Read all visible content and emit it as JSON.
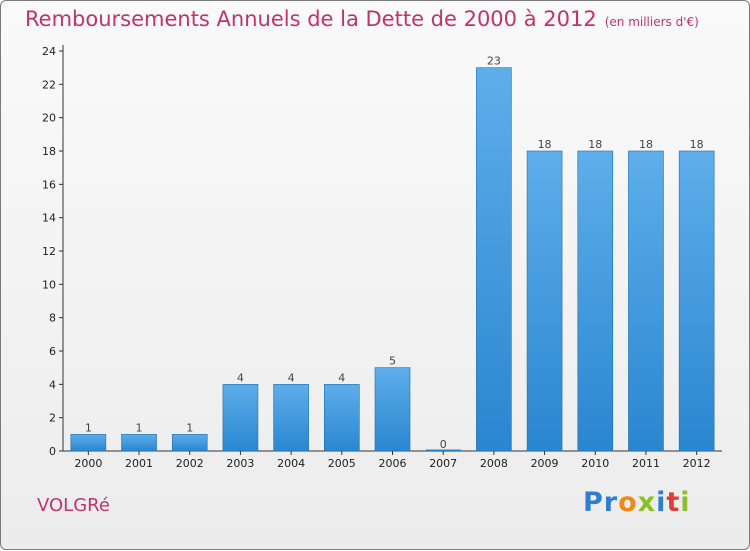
{
  "chart_data": {
    "type": "bar",
    "title": "Remboursements Annuels de la Dette de 2000 à 2012",
    "subtitle": "(en milliers d'€)",
    "categories": [
      "2000",
      "2001",
      "2002",
      "2003",
      "2004",
      "2005",
      "2006",
      "2007",
      "2008",
      "2009",
      "2010",
      "2011",
      "2012"
    ],
    "values": [
      1,
      1,
      1,
      4,
      4,
      4,
      5,
      0,
      23,
      18,
      18,
      18,
      18
    ],
    "data_labels": [
      "1",
      "1",
      "1",
      "4",
      "4",
      "4",
      "5",
      "0",
      "23",
      "18",
      "18",
      "18",
      "18"
    ],
    "yticks": [
      0,
      2,
      4,
      6,
      8,
      10,
      12,
      14,
      16,
      18,
      20,
      22,
      24
    ],
    "ylim": [
      0,
      24
    ],
    "bar_color": "#2a86d0",
    "grid": false,
    "legend": "none"
  },
  "footer": {
    "place": "VOLGRé",
    "brand_letters": [
      {
        "ch": "P",
        "color": "#2e7fd0"
      },
      {
        "ch": "r",
        "color": "#2e7fd0"
      },
      {
        "ch": "o",
        "color": "#f08a17"
      },
      {
        "ch": "x",
        "color": "#8cbf26"
      },
      {
        "ch": "i",
        "color": "#2e7fd0"
      },
      {
        "ch": "t",
        "color": "#e23b3b"
      },
      {
        "ch": "i",
        "color": "#8cbf26"
      }
    ]
  }
}
